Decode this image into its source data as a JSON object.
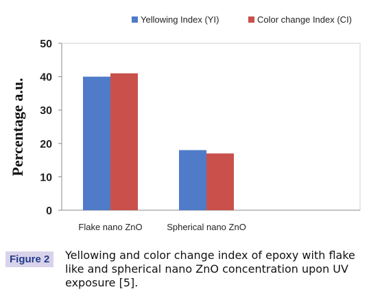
{
  "chart_data": {
    "type": "bar",
    "categories": [
      "Flake nano ZnO",
      "Spherical nano ZnO"
    ],
    "series": [
      {
        "name": "Yellowing Index (YI)",
        "values": [
          40,
          18
        ],
        "color": "#4f7bc8"
      },
      {
        "name": "Color change Index (CI)",
        "values": [
          41,
          17
        ],
        "color": "#c9504b"
      }
    ],
    "ylabel": "Percentage a.u.",
    "xlabel": "",
    "ylim": [
      0,
      50
    ],
    "yticks": [
      0,
      10,
      20,
      30,
      40,
      50
    ],
    "grid": false,
    "legend_position": "top"
  },
  "caption": {
    "badge": "Figure 2",
    "text": "Yellowing and color change index of epoxy with flake like and spherical nano ZnO concentration upon UV exposure [5]."
  }
}
